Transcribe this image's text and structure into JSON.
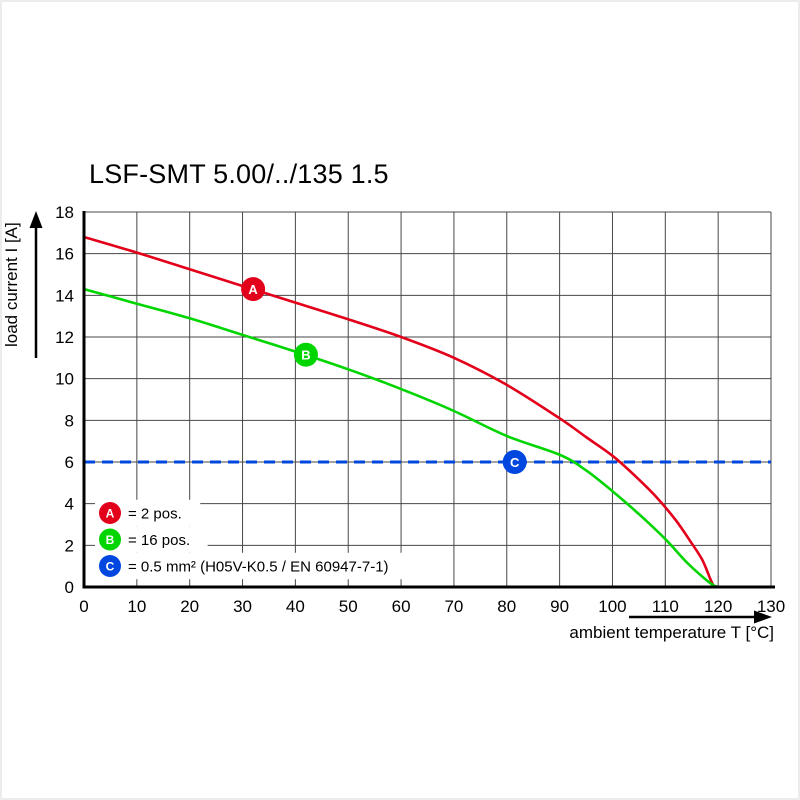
{
  "title": "LSF-SMT 5.00/../135 1.5",
  "chart_data": {
    "type": "line",
    "title": "LSF-SMT 5.00/../135 1.5",
    "xlabel": "ambient temperature T [°C]",
    "ylabel": "load current I [A]",
    "xlim": [
      0,
      130
    ],
    "ylim": [
      0,
      18
    ],
    "xticks": [
      0,
      10,
      20,
      30,
      40,
      50,
      60,
      70,
      80,
      90,
      100,
      110,
      120,
      130
    ],
    "yticks": [
      0,
      2,
      4,
      6,
      8,
      10,
      12,
      14,
      16,
      18
    ],
    "grid": true,
    "legend_position": "inside-bottom-left",
    "colors": {
      "grid": "#474747",
      "axis": "#000000",
      "background": "#ffffff"
    },
    "series": [
      {
        "name": "A",
        "legend_label": "= 2 pos.",
        "color": "#e2001a",
        "marker": {
          "x": 32,
          "y": 14.3
        },
        "points": [
          [
            0,
            16.8
          ],
          [
            10,
            16.05
          ],
          [
            20,
            15.25
          ],
          [
            30,
            14.45
          ],
          [
            40,
            13.65
          ],
          [
            50,
            12.85
          ],
          [
            60,
            12.0
          ],
          [
            70,
            11.0
          ],
          [
            80,
            9.7
          ],
          [
            90,
            8.1
          ],
          [
            95,
            7.2
          ],
          [
            100,
            6.3
          ],
          [
            104,
            5.4
          ],
          [
            108,
            4.4
          ],
          [
            112,
            3.2
          ],
          [
            115,
            2.1
          ],
          [
            117,
            1.3
          ],
          [
            118.5,
            0.4
          ],
          [
            119.2,
            0
          ]
        ]
      },
      {
        "name": "B",
        "legend_label": "= 16 pos.",
        "color": "#00d500",
        "marker": {
          "x": 42,
          "y": 11.15
        },
        "points": [
          [
            0,
            14.3
          ],
          [
            10,
            13.6
          ],
          [
            20,
            12.9
          ],
          [
            30,
            12.1
          ],
          [
            40,
            11.3
          ],
          [
            50,
            10.45
          ],
          [
            60,
            9.5
          ],
          [
            70,
            8.45
          ],
          [
            80,
            7.25
          ],
          [
            90,
            6.35
          ],
          [
            95,
            5.6
          ],
          [
            100,
            4.6
          ],
          [
            105,
            3.5
          ],
          [
            110,
            2.3
          ],
          [
            114,
            1.2
          ],
          [
            117,
            0.5
          ],
          [
            119,
            0.1
          ],
          [
            120,
            0
          ]
        ]
      },
      {
        "name": "C",
        "legend_label": "= 0.5 mm² (H05V-K0.5 / EN 60947-7-1)",
        "color": "#0047e0",
        "style": "dashed-hline",
        "y": 6,
        "marker": {
          "x": 81.5,
          "y": 6
        }
      }
    ]
  }
}
